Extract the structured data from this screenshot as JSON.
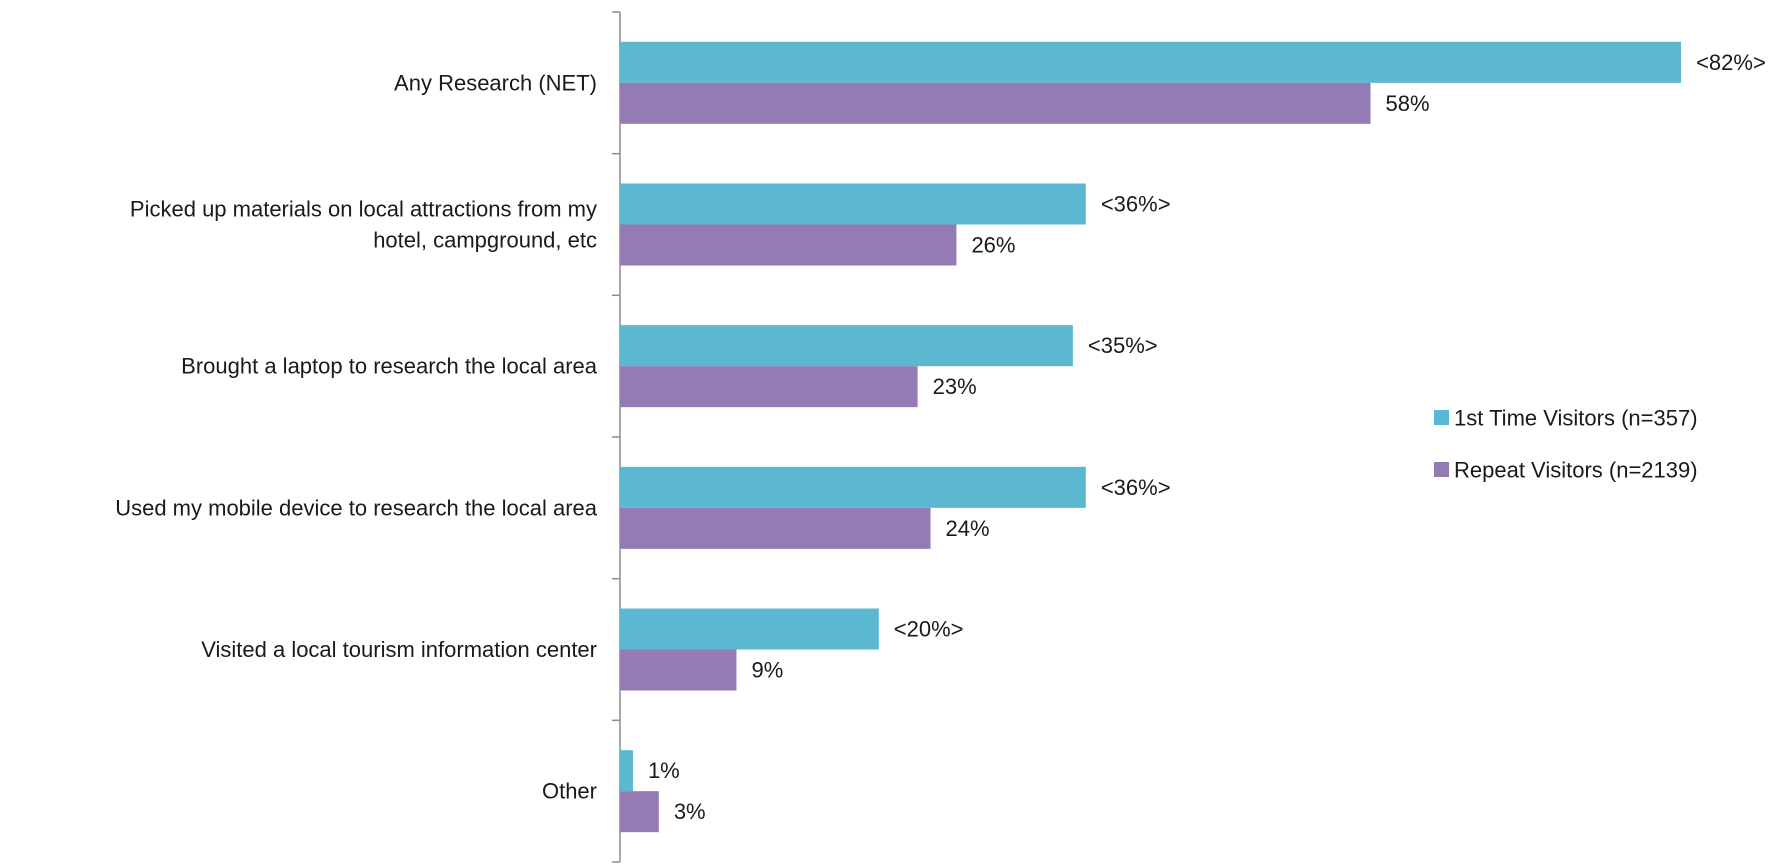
{
  "chart_data": {
    "type": "bar",
    "orientation": "horizontal",
    "categories": [
      "Any Research (NET)",
      "Picked up materials on local attractions from my hotel, campground, etc",
      "Brought a laptop to research the local area",
      "Used my mobile device to research the local area",
      "Visited a local tourism information center",
      "Other"
    ],
    "category_lines": [
      [
        "Any Research (NET)"
      ],
      [
        "Picked up materials on local attractions from my",
        "hotel, campground, etc"
      ],
      [
        "Brought a laptop to research the local area"
      ],
      [
        "Used my mobile device to research the local area"
      ],
      [
        "Visited a local tourism information center"
      ],
      [
        "Other"
      ]
    ],
    "series": [
      {
        "name": "1st Time Visitors (n=357)",
        "color": "#5BB8D0",
        "values": [
          82,
          36,
          35,
          36,
          20,
          1
        ],
        "labels": [
          "<82%>",
          "<36%>",
          "<35%>",
          "<36%>",
          "<20%>",
          "1%"
        ]
      },
      {
        "name": "Repeat Visitors (n=2139)",
        "color": "#947BB3",
        "values": [
          58,
          26,
          23,
          24,
          9,
          3
        ],
        "labels": [
          "58%",
          "26%",
          "23%",
          "24%",
          "9%",
          "3%"
        ]
      }
    ],
    "xlim": [
      0,
      82
    ],
    "title": "",
    "xlabel": "",
    "ylabel": "",
    "grid": false,
    "legend_position": "right"
  }
}
